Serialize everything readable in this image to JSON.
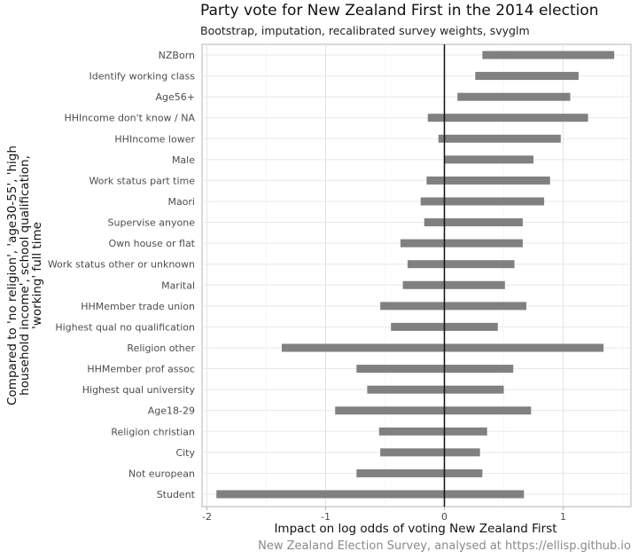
{
  "chart_data": {
    "type": "bar",
    "orientation": "horizontal-interval",
    "title": "Party vote for New Zealand First in the 2014 election",
    "subtitle": "Bootstrap, imputation, recalibrated survey weights, svyglm",
    "xlabel": "Impact on log odds of voting New Zealand First",
    "ylabel_lines": [
      "Compared to 'no religion', 'age30-55', 'high",
      "household income', school qualification,",
      "'working' full time"
    ],
    "caption": "New Zealand Election Survey, analysed at https://ellisp.github.io",
    "xlim": [
      -2.05,
      1.57
    ],
    "xticks": [
      -2,
      -1,
      0,
      1
    ],
    "xtick_labels": [
      "-2",
      "-1",
      "0",
      "1"
    ],
    "reference_line_x": 0,
    "grid": true,
    "bar_color": "#808080",
    "categories": [
      "NZBorn",
      "Identify working class",
      "Age56+",
      "HHIncome don't know / NA",
      "HHIncome lower",
      "Male",
      "Work status part time",
      "Maori",
      "Supervise anyone",
      "Own house or flat",
      "Work status other or unknown",
      "Marital",
      "HHMember trade union",
      "Highest qual no qualification",
      "Religion other",
      "HHMember prof assoc",
      "Highest qual university",
      "Age18-29",
      "Religion christian",
      "City",
      "Not european",
      "Student"
    ],
    "lower": [
      0.32,
      0.26,
      0.11,
      -0.14,
      -0.05,
      0.0,
      -0.15,
      -0.2,
      -0.17,
      -0.37,
      -0.31,
      -0.35,
      -0.54,
      -0.45,
      -1.37,
      -0.74,
      -0.65,
      -0.92,
      -0.55,
      -0.54,
      -0.74,
      -1.92
    ],
    "upper": [
      1.43,
      1.13,
      1.06,
      1.21,
      0.98,
      0.75,
      0.89,
      0.84,
      0.66,
      0.66,
      0.59,
      0.51,
      0.69,
      0.45,
      1.34,
      0.58,
      0.5,
      0.73,
      0.36,
      0.3,
      0.32,
      0.67
    ]
  }
}
